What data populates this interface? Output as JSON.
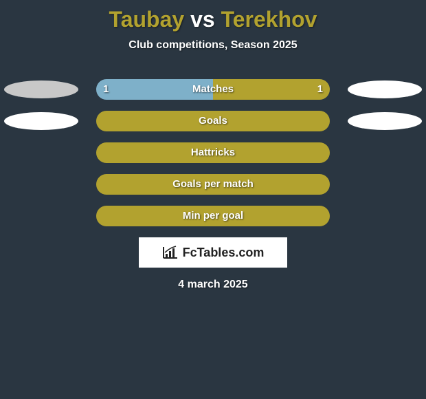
{
  "title": {
    "player1": "Taubay",
    "vs": "vs",
    "player2": "Terekhov",
    "player1_color": "#b2a22f",
    "player2_color": "#b2a22f"
  },
  "subtitle": "Club competitions, Season 2025",
  "colors": {
    "background": "#2a3641",
    "bar_default": "#b2a22f",
    "bar_matches_left": "#7eb0c9",
    "ellipse_gray": "#c8c8c8",
    "ellipse_white": "#ffffff",
    "text": "#ffffff"
  },
  "rows": [
    {
      "label": "Matches",
      "left_value": "1",
      "right_value": "1",
      "left_width_pct": 50,
      "right_width_pct": 50,
      "left_color": "#7eb0c9",
      "right_color": "#b2a22f",
      "show_left_ellipse": true,
      "show_right_ellipse": true,
      "left_ellipse_color": "#c8c8c8",
      "right_ellipse_color": "#ffffff"
    },
    {
      "label": "Goals",
      "left_value": "",
      "right_value": "",
      "left_width_pct": 0,
      "right_width_pct": 100,
      "left_color": "#b2a22f",
      "right_color": "#b2a22f",
      "show_left_ellipse": true,
      "show_right_ellipse": true,
      "left_ellipse_color": "#ffffff",
      "right_ellipse_color": "#ffffff"
    },
    {
      "label": "Hattricks",
      "left_value": "",
      "right_value": "",
      "left_width_pct": 0,
      "right_width_pct": 100,
      "left_color": "#b2a22f",
      "right_color": "#b2a22f",
      "show_left_ellipse": false,
      "show_right_ellipse": false,
      "left_ellipse_color": "#ffffff",
      "right_ellipse_color": "#ffffff"
    },
    {
      "label": "Goals per match",
      "left_value": "",
      "right_value": "",
      "left_width_pct": 0,
      "right_width_pct": 100,
      "left_color": "#b2a22f",
      "right_color": "#b2a22f",
      "show_left_ellipse": false,
      "show_right_ellipse": false,
      "left_ellipse_color": "#ffffff",
      "right_ellipse_color": "#ffffff"
    },
    {
      "label": "Min per goal",
      "left_value": "",
      "right_value": "",
      "left_width_pct": 0,
      "right_width_pct": 100,
      "left_color": "#b2a22f",
      "right_color": "#b2a22f",
      "show_left_ellipse": false,
      "show_right_ellipse": false,
      "left_ellipse_color": "#ffffff",
      "right_ellipse_color": "#ffffff"
    }
  ],
  "logo_text": "FcTables.com",
  "date": "4 march 2025"
}
